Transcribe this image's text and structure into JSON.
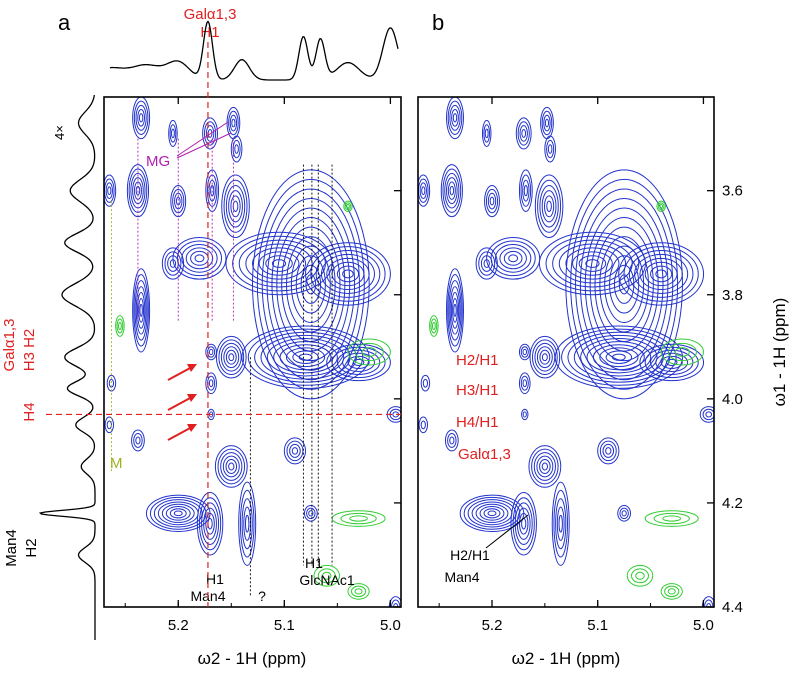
{
  "colors": {
    "contour_positive": "#2233cc",
    "contour_negative": "#33cc33",
    "annotation_red": "#e02020",
    "annotation_magenta": "#b020b0",
    "annotation_olive": "#a0b020",
    "axis": "#000000"
  },
  "panels": [
    {
      "label": "a",
      "top_annotation": [
        "Galα1,3",
        "H1"
      ],
      "left_annotation_red": [
        "Galα1,3",
        "H3 H2",
        "H4"
      ],
      "left_annotation_black": [
        "Man4",
        "H2"
      ],
      "left_trace_label": "4×",
      "mg_label": "MG",
      "m_label": "M",
      "bottom_labels": {
        "man4_h1": [
          "H1",
          "Man4"
        ],
        "unknown": "?",
        "glcnac1_h1": [
          "H1",
          "GlcNAc1"
        ]
      }
    },
    {
      "label": "b",
      "crosspeak_labels": [
        "H2/H1",
        "H3/H1",
        "H4/H1",
        "Galα1,3"
      ],
      "man4_labels": [
        "H2/H1",
        "Man4"
      ]
    }
  ],
  "chart_data": {
    "type": "heatmap",
    "subtype": "2D NMR contour spectrum",
    "xlabel": "ω2 - 1H (ppm)",
    "ylabel": "ω1 - 1H (ppm)",
    "xlim": [
      5.27,
      4.99
    ],
    "ylim": [
      3.42,
      4.4
    ],
    "x_ticks": [
      "5.2",
      "5.1",
      "5.0"
    ],
    "x_tick_values": [
      5.2,
      5.1,
      5.0
    ],
    "y_ticks": [
      "3.6",
      "3.8",
      "4.0",
      "4.2",
      "4.4"
    ],
    "y_tick_values": [
      3.6,
      3.8,
      4.0,
      4.2,
      4.4
    ],
    "peaks": [
      {
        "x": 5.235,
        "y": 3.46,
        "rx": 0.008,
        "ry": 0.04,
        "n": 5
      },
      {
        "x": 5.205,
        "y": 3.49,
        "rx": 0.004,
        "ry": 0.025,
        "n": 3
      },
      {
        "x": 5.17,
        "y": 3.49,
        "rx": 0.007,
        "ry": 0.03,
        "n": 4
      },
      {
        "x": 5.148,
        "y": 3.47,
        "rx": 0.006,
        "ry": 0.03,
        "n": 4
      },
      {
        "x": 5.145,
        "y": 3.52,
        "rx": 0.005,
        "ry": 0.025,
        "n": 3
      },
      {
        "x": 5.265,
        "y": 3.6,
        "rx": 0.006,
        "ry": 0.03,
        "n": 4
      },
      {
        "x": 5.238,
        "y": 3.6,
        "rx": 0.01,
        "ry": 0.05,
        "n": 6
      },
      {
        "x": 5.2,
        "y": 3.62,
        "rx": 0.007,
        "ry": 0.03,
        "n": 4
      },
      {
        "x": 5.168,
        "y": 3.6,
        "rx": 0.006,
        "ry": 0.04,
        "n": 4
      },
      {
        "x": 5.146,
        "y": 3.63,
        "rx": 0.013,
        "ry": 0.06,
        "n": 6
      },
      {
        "x": 5.205,
        "y": 3.74,
        "rx": 0.01,
        "ry": 0.03,
        "n": 4
      },
      {
        "x": 5.18,
        "y": 3.73,
        "rx": 0.025,
        "ry": 0.04,
        "n": 6
      },
      {
        "x": 5.235,
        "y": 3.83,
        "rx": 0.008,
        "ry": 0.08,
        "n": 7
      },
      {
        "x": 5.075,
        "y": 3.78,
        "rx": 0.055,
        "ry": 0.22,
        "n": 12
      },
      {
        "x": 5.105,
        "y": 3.74,
        "rx": 0.05,
        "ry": 0.06,
        "n": 8
      },
      {
        "x": 5.04,
        "y": 3.76,
        "rx": 0.04,
        "ry": 0.06,
        "n": 8
      },
      {
        "x": 5.08,
        "y": 3.92,
        "rx": 0.06,
        "ry": 0.06,
        "n": 10
      },
      {
        "x": 5.03,
        "y": 3.93,
        "rx": 0.03,
        "ry": 0.035,
        "n": 6
      },
      {
        "x": 5.169,
        "y": 3.91,
        "rx": 0.005,
        "ry": 0.015,
        "n": 3
      },
      {
        "x": 5.169,
        "y": 3.97,
        "rx": 0.005,
        "ry": 0.02,
        "n": 3
      },
      {
        "x": 5.169,
        "y": 4.03,
        "rx": 0.003,
        "ry": 0.01,
        "n": 2
      },
      {
        "x": 5.15,
        "y": 3.92,
        "rx": 0.014,
        "ry": 0.04,
        "n": 6
      },
      {
        "x": 5.263,
        "y": 3.97,
        "rx": 0.004,
        "ry": 0.015,
        "n": 2
      },
      {
        "x": 5.265,
        "y": 4.05,
        "rx": 0.004,
        "ry": 0.015,
        "n": 2
      },
      {
        "x": 5.238,
        "y": 4.08,
        "rx": 0.006,
        "ry": 0.02,
        "n": 3
      },
      {
        "x": 5.15,
        "y": 4.13,
        "rx": 0.015,
        "ry": 0.04,
        "n": 6
      },
      {
        "x": 5.09,
        "y": 4.1,
        "rx": 0.01,
        "ry": 0.025,
        "n": 4
      },
      {
        "x": 5.2,
        "y": 4.22,
        "rx": 0.03,
        "ry": 0.035,
        "n": 8
      },
      {
        "x": 5.17,
        "y": 4.24,
        "rx": 0.012,
        "ry": 0.06,
        "n": 6
      },
      {
        "x": 5.135,
        "y": 4.24,
        "rx": 0.008,
        "ry": 0.08,
        "n": 5
      },
      {
        "x": 5.075,
        "y": 4.22,
        "rx": 0.006,
        "ry": 0.015,
        "n": 3
      },
      {
        "x": 4.995,
        "y": 4.03,
        "rx": 0.008,
        "ry": 0.015,
        "n": 3
      },
      {
        "x": 4.995,
        "y": 4.4,
        "rx": 0.006,
        "ry": 0.02,
        "n": 3
      }
    ],
    "negative_peaks": [
      {
        "x": 5.255,
        "y": 3.86,
        "rx": 0.004,
        "ry": 0.02
      },
      {
        "x": 5.04,
        "y": 3.63,
        "rx": 0.004,
        "ry": 0.01
      },
      {
        "x": 5.02,
        "y": 3.91,
        "rx": 0.02,
        "ry": 0.025
      },
      {
        "x": 5.03,
        "y": 4.23,
        "rx": 0.025,
        "ry": 0.015
      },
      {
        "x": 5.06,
        "y": 4.34,
        "rx": 0.012,
        "ry": 0.02
      },
      {
        "x": 5.03,
        "y": 4.37,
        "rx": 0.01,
        "ry": 0.015
      }
    ],
    "reference_lines": {
      "red_x": 5.172,
      "red_y": 4.03,
      "black_x": [
        5.082,
        5.074,
        5.068,
        5.055
      ],
      "unknown_x": 5.132,
      "magenta_x": [
        5.238,
        5.2,
        5.168,
        5.148
      ],
      "olive_x": 5.263
    },
    "top_projection_peaks": [
      {
        "x": 5.265,
        "h": 0.2,
        "w": 0.02
      },
      {
        "x": 5.23,
        "h": 0.25,
        "w": 0.02
      },
      {
        "x": 5.2,
        "h": 0.3,
        "w": 0.015
      },
      {
        "x": 5.172,
        "h": 1.0,
        "w": 0.006
      },
      {
        "x": 5.14,
        "h": 0.35,
        "w": 0.01
      },
      {
        "x": 5.082,
        "h": 0.75,
        "w": 0.006
      },
      {
        "x": 5.066,
        "h": 0.7,
        "w": 0.006
      },
      {
        "x": 5.04,
        "h": 0.3,
        "w": 0.015
      },
      {
        "x": 5.0,
        "h": 0.9,
        "w": 0.01
      }
    ],
    "left_projection_peaks": [
      {
        "y": 3.47,
        "h": 0.3,
        "w": 0.03
      },
      {
        "y": 3.6,
        "h": 0.45,
        "w": 0.03
      },
      {
        "y": 3.7,
        "h": 0.55,
        "w": 0.025
      },
      {
        "y": 3.8,
        "h": 0.6,
        "w": 0.03
      },
      {
        "y": 3.92,
        "h": 0.55,
        "w": 0.025
      },
      {
        "y": 3.98,
        "h": 0.5,
        "w": 0.02
      },
      {
        "y": 4.05,
        "h": 0.35,
        "w": 0.02
      },
      {
        "y": 4.13,
        "h": 0.25,
        "w": 0.02
      },
      {
        "y": 4.22,
        "h": 1.0,
        "w": 0.008
      },
      {
        "y": 4.3,
        "h": 0.3,
        "w": 0.02
      }
    ]
  }
}
